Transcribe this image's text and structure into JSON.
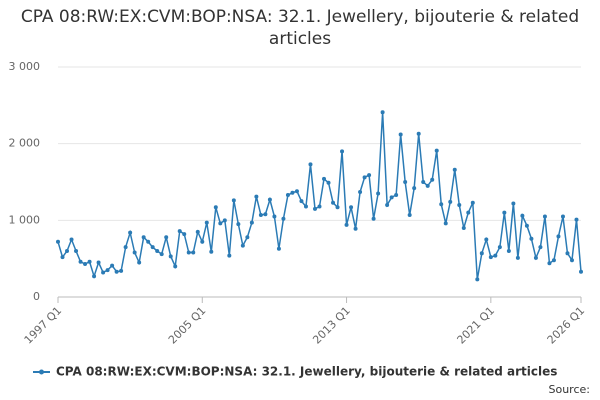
{
  "chart_data": {
    "type": "line",
    "title": "CPA 08:RW:EX:CVM:BOP:NSA: 32.1. Jewellery, bijouterie & related articles",
    "categories": [
      "1997 Q1",
      null,
      null,
      null,
      null,
      null,
      null,
      null,
      null,
      null,
      null,
      null,
      null,
      null,
      null,
      null,
      null,
      null,
      null,
      null,
      null,
      null,
      null,
      null,
      null,
      null,
      null,
      null,
      null,
      null,
      null,
      null,
      "2005 Q1",
      null,
      null,
      null,
      null,
      null,
      null,
      null,
      null,
      null,
      null,
      null,
      null,
      null,
      null,
      null,
      null,
      null,
      null,
      null,
      null,
      null,
      null,
      null,
      null,
      null,
      null,
      null,
      null,
      null,
      null,
      null,
      "2013 Q1",
      null,
      null,
      null,
      null,
      null,
      null,
      null,
      null,
      null,
      null,
      null,
      null,
      null,
      null,
      null,
      null,
      null,
      null,
      null,
      null,
      null,
      null,
      null,
      null,
      null,
      null,
      null,
      null,
      null,
      null,
      null,
      "2021 Q1",
      null,
      null,
      null,
      null,
      null,
      null,
      null,
      null,
      null,
      null,
      null,
      null,
      null,
      null,
      null,
      null,
      null,
      null,
      null,
      "2026 Q1"
    ],
    "series": [
      {
        "name": "CPA 08:RW:EX:CVM:BOP:NSA: 32.1. Jewellery, bijouterie & related articles",
        "color": "#2b7bb5",
        "values": [
          720,
          520,
          600,
          750,
          600,
          460,
          430,
          460,
          270,
          450,
          320,
          350,
          410,
          330,
          340,
          650,
          840,
          580,
          450,
          780,
          720,
          650,
          600,
          560,
          780,
          530,
          400,
          860,
          820,
          580,
          580,
          850,
          720,
          970,
          590,
          1170,
          960,
          1000,
          540,
          1260,
          950,
          670,
          780,
          970,
          1310,
          1070,
          1080,
          1270,
          1050,
          630,
          1020,
          1330,
          1360,
          1380,
          1250,
          1180,
          1730,
          1150,
          1180,
          1540,
          1490,
          1230,
          1170,
          1900,
          940,
          1170,
          890,
          1370,
          1560,
          1590,
          1020,
          1350,
          2410,
          1200,
          1300,
          1330,
          2120,
          1500,
          1070,
          1420,
          2130,
          1500,
          1450,
          1530,
          1910,
          1210,
          960,
          1240,
          1660,
          1200,
          900,
          1100,
          1230,
          230,
          570,
          750,
          520,
          540,
          650,
          1100,
          600,
          1220,
          510,
          1060,
          930,
          760,
          510,
          650,
          1050,
          440,
          480,
          790,
          1050,
          570,
          480,
          1010,
          330
        ]
      }
    ],
    "ylim": [
      0,
      3000
    ],
    "yticks": [
      0,
      {
        "value": 1000,
        "label": "1 000"
      },
      {
        "value": 2000,
        "label": "2 000"
      },
      {
        "value": 3000,
        "label": "3 000"
      }
    ],
    "grid": true,
    "legend": "bottom",
    "source_label": "Source:"
  }
}
